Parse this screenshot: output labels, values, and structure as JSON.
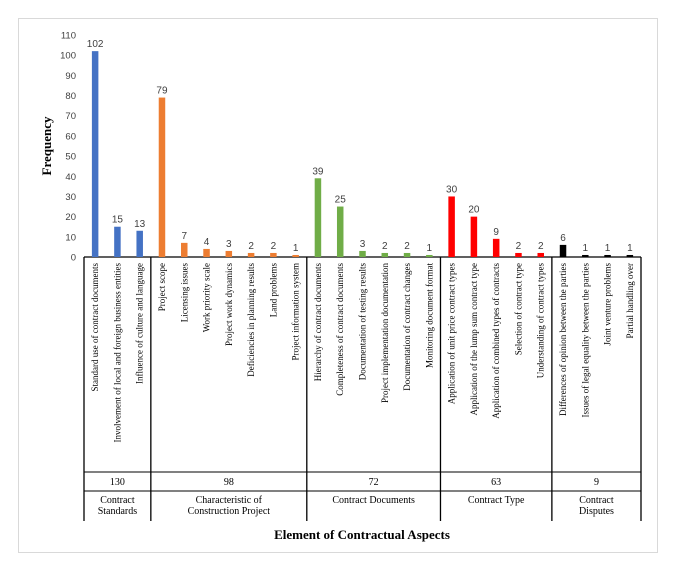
{
  "chart_data": {
    "type": "bar",
    "ylabel": "Frequency",
    "xlabel": "Element of Contractual Aspects",
    "ylim": [
      0,
      110
    ],
    "yticks": [
      0,
      10,
      20,
      30,
      40,
      50,
      60,
      70,
      80,
      90,
      100,
      110
    ],
    "grid": false,
    "legend": "none",
    "groups": [
      {
        "name": "Contract Standards",
        "total": "130",
        "color": "#4472c4",
        "categories": [
          "Standard use of contract documents",
          "Involvement of local and foreign business entities",
          "Influence of culture and language"
        ],
        "values": [
          102,
          15,
          13
        ]
      },
      {
        "name": "Characteristic of Construction Project",
        "total": "98",
        "color": "#ed7d31",
        "categories": [
          "Project scope",
          "Licensing issues",
          "Work priority scale",
          "Project work dynamics",
          "Deficiencies in planning results",
          "Land problems",
          "Project information system"
        ],
        "values": [
          79,
          7,
          4,
          3,
          2,
          2,
          1
        ]
      },
      {
        "name": "Contract Documents",
        "total": "72",
        "color": "#70ad47",
        "categories": [
          "Hierarchy of contract documents",
          "Completeness of contract documents",
          "Documentation of testing results",
          "Project implementation documentation",
          "Documentation of contract changes",
          "Monitoring document format"
        ],
        "values": [
          39,
          25,
          3,
          2,
          2,
          1
        ]
      },
      {
        "name": "Contract Type",
        "total": "63",
        "color": "#ff0000",
        "categories": [
          "Application of unit price contract types",
          "Application of the lump sum contract type",
          "Application of combined types of contracts",
          "Selection of contract type",
          "Understanding of contract types"
        ],
        "values": [
          30,
          20,
          9,
          2,
          2
        ]
      },
      {
        "name": "Contract Disputes",
        "total": "9",
        "color": "#000000",
        "categories": [
          "Differences of opinion between the parties",
          "Issues of legal equality between the parties",
          "Joint venture problems",
          "Partial handling over"
        ],
        "values": [
          6,
          1,
          1,
          1
        ]
      }
    ]
  }
}
